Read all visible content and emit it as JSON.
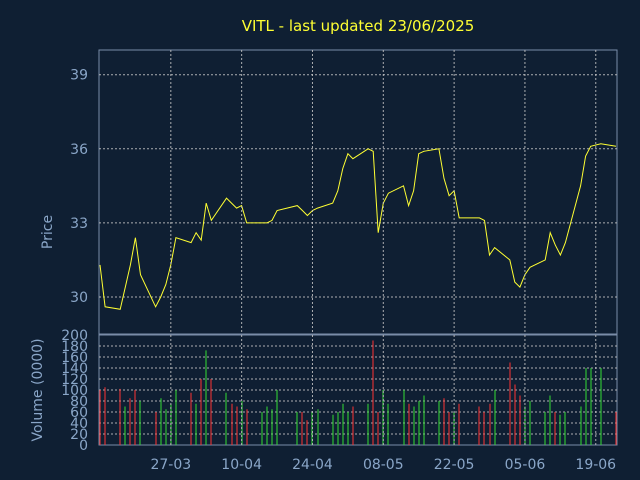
{
  "title": "VITL - last updated 23/06/2025",
  "chart_data": [
    {
      "type": "line",
      "ylabel": "Price",
      "ylim": [
        28.5,
        40.0
      ],
      "yticks": [
        30,
        33,
        36,
        39
      ],
      "x_dates": [
        "2025-03-13",
        "2025-03-14",
        "2025-03-17",
        "2025-03-18",
        "2025-03-19",
        "2025-03-20",
        "2025-03-21",
        "2025-03-24",
        "2025-03-25",
        "2025-03-26",
        "2025-03-27",
        "2025-03-28",
        "2025-03-31",
        "2025-04-01",
        "2025-04-02",
        "2025-04-03",
        "2025-04-04",
        "2025-04-07",
        "2025-04-08",
        "2025-04-09",
        "2025-04-10",
        "2025-04-11",
        "2025-04-14",
        "2025-04-15",
        "2025-04-16",
        "2025-04-17",
        "2025-04-21",
        "2025-04-22",
        "2025-04-23",
        "2025-04-24",
        "2025-04-25",
        "2025-04-28",
        "2025-04-29",
        "2025-04-30",
        "2025-05-01",
        "2025-05-02",
        "2025-05-05",
        "2025-05-06",
        "2025-05-07",
        "2025-05-08",
        "2025-05-09",
        "2025-05-12",
        "2025-05-13",
        "2025-05-14",
        "2025-05-15",
        "2025-05-16",
        "2025-05-19",
        "2025-05-20",
        "2025-05-21",
        "2025-05-22",
        "2025-05-23",
        "2025-05-27",
        "2025-05-28",
        "2025-05-29",
        "2025-05-30",
        "2025-06-02",
        "2025-06-03",
        "2025-06-04",
        "2025-06-05",
        "2025-06-06",
        "2025-06-09",
        "2025-06-10",
        "2025-06-11",
        "2025-06-12",
        "2025-06-13",
        "2025-06-16",
        "2025-06-17",
        "2025-06-18",
        "2025-06-20",
        "2025-06-23"
      ],
      "xtick_labels": [
        "27-03",
        "10-04",
        "24-04",
        "08-05",
        "22-05",
        "05-06",
        "19-06"
      ],
      "xtick_dates": [
        "2025-03-27",
        "2025-04-10",
        "2025-04-24",
        "2025-05-08",
        "2025-05-22",
        "2025-06-05",
        "2025-06-19"
      ],
      "series": [
        {
          "values": [
            31.3,
            29.6,
            29.5,
            30.4,
            31.3,
            32.4,
            30.9,
            29.6,
            30.0,
            30.5,
            31.3,
            32.4,
            32.2,
            32.6,
            32.3,
            33.8,
            33.1,
            34.0,
            33.8,
            33.6,
            33.7,
            33.0,
            33.0,
            33.0,
            33.1,
            33.5,
            33.7,
            33.5,
            33.3,
            33.5,
            33.6,
            33.8,
            34.3,
            35.2,
            35.8,
            35.6,
            36.0,
            35.9,
            32.6,
            33.8,
            34.2,
            34.5,
            33.7,
            34.3,
            35.8,
            35.9,
            36.0,
            34.8,
            34.1,
            34.3,
            33.2,
            33.2,
            33.1,
            31.7,
            32.0,
            31.5,
            30.6,
            30.4,
            30.9,
            31.2,
            31.5,
            32.6,
            32.1,
            31.7,
            32.2,
            34.5,
            35.7,
            36.1,
            36.2,
            36.1
          ],
          "color": "#ffff33"
        }
      ]
    },
    {
      "type": "bar",
      "ylabel": "Volume (0000)",
      "ylim": [
        0,
        200
      ],
      "yticks": [
        0,
        20,
        40,
        60,
        80,
        100,
        120,
        140,
        160,
        180,
        200
      ],
      "x_dates": [
        "2025-03-13",
        "2025-03-14",
        "2025-03-17",
        "2025-03-18",
        "2025-03-19",
        "2025-03-20",
        "2025-03-21",
        "2025-03-24",
        "2025-03-25",
        "2025-03-26",
        "2025-03-27",
        "2025-03-28",
        "2025-03-31",
        "2025-04-01",
        "2025-04-02",
        "2025-04-03",
        "2025-04-04",
        "2025-04-07",
        "2025-04-08",
        "2025-04-09",
        "2025-04-10",
        "2025-04-11",
        "2025-04-14",
        "2025-04-15",
        "2025-04-16",
        "2025-04-17",
        "2025-04-21",
        "2025-04-22",
        "2025-04-23",
        "2025-04-24",
        "2025-04-25",
        "2025-04-28",
        "2025-04-29",
        "2025-04-30",
        "2025-05-01",
        "2025-05-02",
        "2025-05-05",
        "2025-05-06",
        "2025-05-07",
        "2025-05-08",
        "2025-05-09",
        "2025-05-12",
        "2025-05-13",
        "2025-05-14",
        "2025-05-15",
        "2025-05-16",
        "2025-05-19",
        "2025-05-20",
        "2025-05-21",
        "2025-05-22",
        "2025-05-23",
        "2025-05-27",
        "2025-05-28",
        "2025-05-29",
        "2025-05-30",
        "2025-06-02",
        "2025-06-03",
        "2025-06-04",
        "2025-06-05",
        "2025-06-06",
        "2025-06-09",
        "2025-06-10",
        "2025-06-11",
        "2025-06-12",
        "2025-06-13",
        "2025-06-16",
        "2025-06-17",
        "2025-06-18",
        "2025-06-20",
        "2025-06-23"
      ],
      "values": [
        100,
        105,
        102,
        70,
        85,
        100,
        80,
        60,
        85,
        65,
        75,
        100,
        95,
        75,
        120,
        172,
        120,
        95,
        75,
        70,
        80,
        65,
        60,
        70,
        65,
        100,
        60,
        60,
        45,
        60,
        65,
        55,
        60,
        75,
        60,
        70,
        75,
        190,
        60,
        100,
        75,
        100,
        75,
        70,
        80,
        90,
        80,
        85,
        60,
        60,
        75,
        70,
        60,
        75,
        100,
        150,
        110,
        90,
        70,
        80,
        60,
        90,
        60,
        55,
        60,
        70,
        140,
        140,
        140,
        60
      ],
      "colors": [
        "#ff3333",
        "#ff3333",
        "#ff3333",
        "#33dd33",
        "#ff3333",
        "#ff3333",
        "#33dd33",
        "#ff3333",
        "#33dd33",
        "#33dd33",
        "#33dd33",
        "#33dd33",
        "#ff3333",
        "#33dd33",
        "#ff3333",
        "#33dd33",
        "#ff3333",
        "#33dd33",
        "#ff3333",
        "#ff3333",
        "#33dd33",
        "#ff3333",
        "#33dd33",
        "#33dd33",
        "#33dd33",
        "#33dd33",
        "#33dd33",
        "#ff3333",
        "#ff3333",
        "#33dd33",
        "#33dd33",
        "#33dd33",
        "#33dd33",
        "#33dd33",
        "#33dd33",
        "#ff3333",
        "#33dd33",
        "#ff3333",
        "#ff3333",
        "#33dd33",
        "#33dd33",
        "#33dd33",
        "#ff3333",
        "#33dd33",
        "#33dd33",
        "#33dd33",
        "#33dd33",
        "#ff3333",
        "#ff3333",
        "#33dd33",
        "#ff3333",
        "#ff3333",
        "#ff3333",
        "#ff3333",
        "#33dd33",
        "#ff3333",
        "#ff3333",
        "#ff3333",
        "#33dd33",
        "#33dd33",
        "#33dd33",
        "#33dd33",
        "#ff3333",
        "#33dd33",
        "#33dd33",
        "#33dd33",
        "#33dd33",
        "#33dd33",
        "#33dd33",
        "#ff3333"
      ]
    }
  ],
  "grid": true,
  "colors": {
    "background": "#0f1f33",
    "up": "#33dd33",
    "down": "#ff3333",
    "line": "#ffff33",
    "text": "#8aa6c8",
    "title": "#ffff33"
  }
}
